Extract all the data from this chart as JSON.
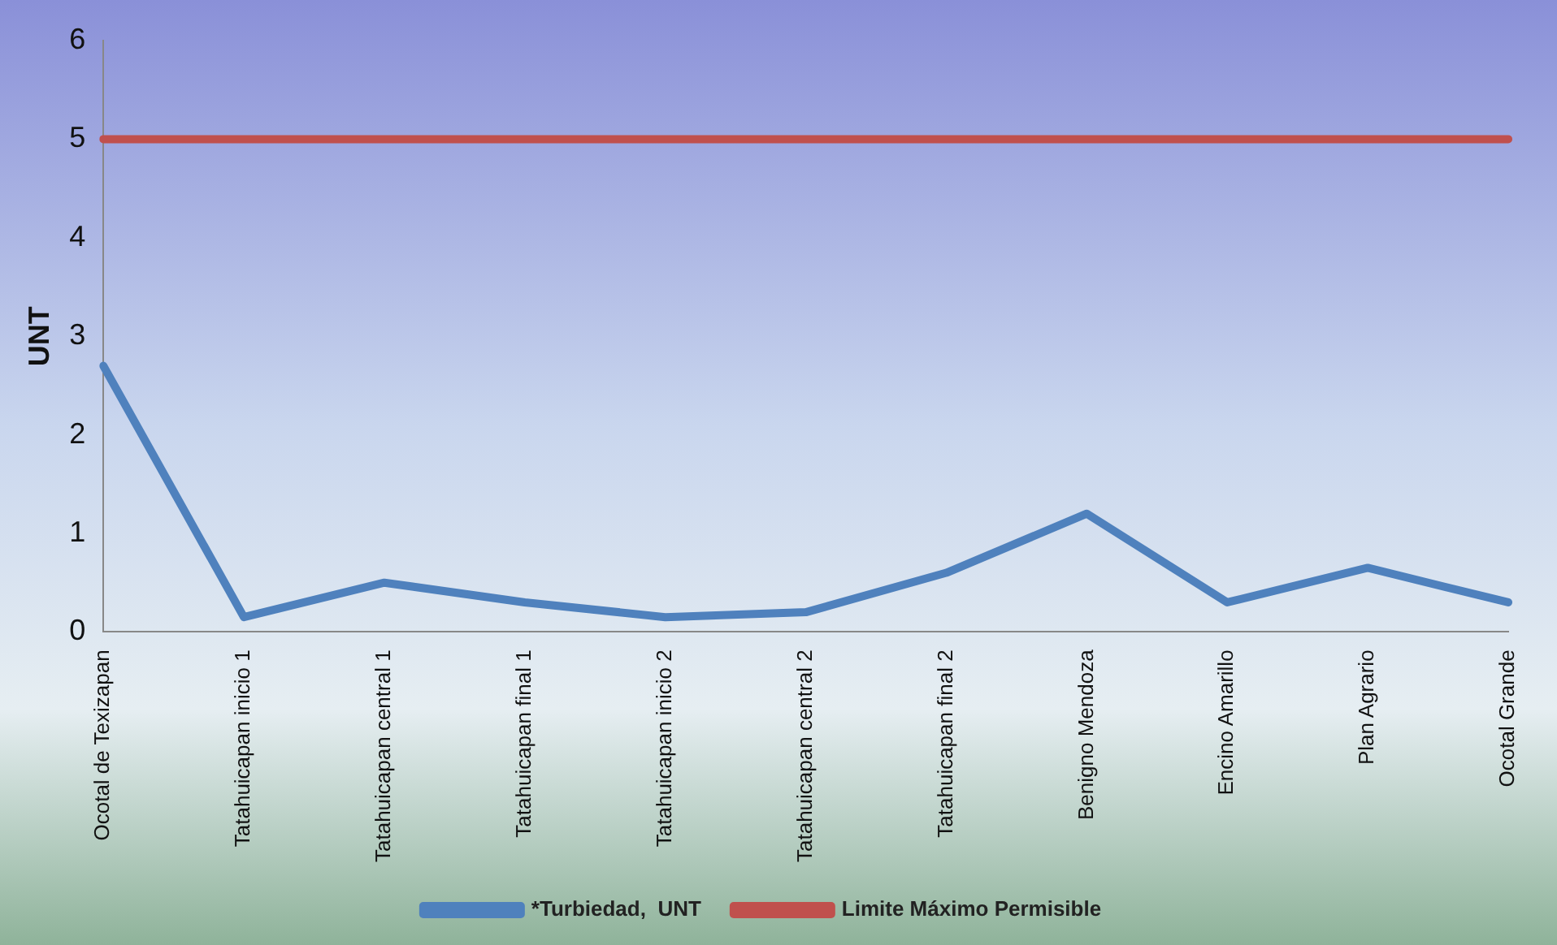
{
  "chart_data": {
    "type": "line",
    "ylabel": "UNT",
    "categories": [
      "Ocotal de Texizapan",
      "Tatahuicapan inicio 1",
      "Tatahuicapan central 1",
      "Tatahuicapan final 1",
      "Tatahuicapan inicio 2",
      "Tatahuicapan central 2",
      "Tatahuicapan final 2",
      "Benigno Mendoza",
      "Encino Amarillo",
      "Plan Agrario",
      "Ocotal Grande"
    ],
    "series": [
      {
        "name": "*Turbiedad,  UNT",
        "color": "#4f81bd",
        "values": [
          2.7,
          0.15,
          0.5,
          0.3,
          0.15,
          0.2,
          0.6,
          1.2,
          0.3,
          0.65,
          0.3
        ]
      },
      {
        "name": "Limite Máximo Permisible",
        "color": "#c0504d",
        "values": [
          5,
          5,
          5,
          5,
          5,
          5,
          5,
          5,
          5,
          5,
          5
        ]
      }
    ],
    "ylim": [
      0,
      6
    ],
    "yticks": [
      0,
      1,
      2,
      3,
      4,
      5,
      6
    ],
    "grid": false,
    "legend": "bottom",
    "marker": "none",
    "line_style": "solid"
  }
}
